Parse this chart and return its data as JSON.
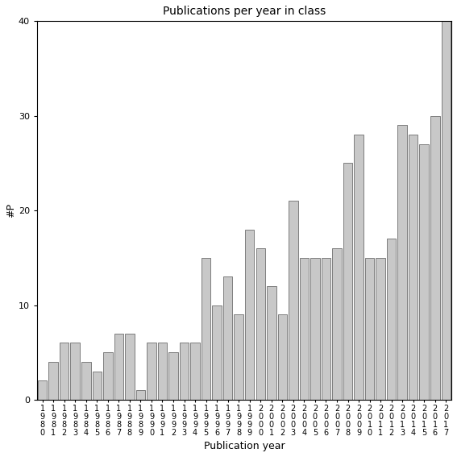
{
  "title": "Publications per year in class",
  "xlabel": "Publication year",
  "ylabel": "#P",
  "years": [
    "1\n9\n8\n0",
    "1\n9\n8\n1",
    "1\n9\n8\n2",
    "1\n9\n8\n3",
    "1\n9\n8\n4",
    "1\n9\n8\n5",
    "1\n9\n8\n6",
    "1\n9\n8\n7",
    "1\n9\n8\n8",
    "1\n9\n8\n9",
    "1\n9\n9\n0",
    "1\n9\n9\n1",
    "1\n9\n9\n2",
    "1\n9\n9\n3",
    "1\n9\n9\n4",
    "1\n9\n9\n5",
    "1\n9\n9\n6",
    "1\n9\n9\n7",
    "1\n9\n9\n8",
    "1\n9\n9\n9",
    "2\n0\n0\n0",
    "2\n0\n0\n1",
    "2\n0\n0\n2",
    "2\n0\n0\n3",
    "2\n0\n0\n4",
    "2\n0\n0\n5",
    "2\n0\n0\n6",
    "2\n0\n0\n7",
    "2\n0\n0\n8",
    "2\n0\n0\n9",
    "2\n0\n1\n0",
    "2\n0\n1\n1",
    "2\n0\n1\n2",
    "2\n0\n1\n3",
    "2\n0\n1\n4",
    "2\n0\n1\n5",
    "2\n0\n1\n6",
    "2\n0\n1\n7"
  ],
  "values": [
    2,
    4,
    6,
    6,
    4,
    3,
    5,
    7,
    7,
    1,
    6,
    6,
    5,
    6,
    6,
    15,
    10,
    13,
    9,
    18,
    16,
    12,
    9,
    21,
    15,
    15,
    15,
    16,
    25,
    28,
    15,
    15,
    17,
    29,
    28,
    27,
    30,
    40
  ],
  "bar_color": "#c8c8c8",
  "bar_edge_color": "#555555",
  "ylim": [
    0,
    40
  ],
  "yticks": [
    0,
    10,
    20,
    30,
    40
  ],
  "background_color": "#ffffff",
  "figsize": [
    5.67,
    5.67
  ],
  "dpi": 100
}
